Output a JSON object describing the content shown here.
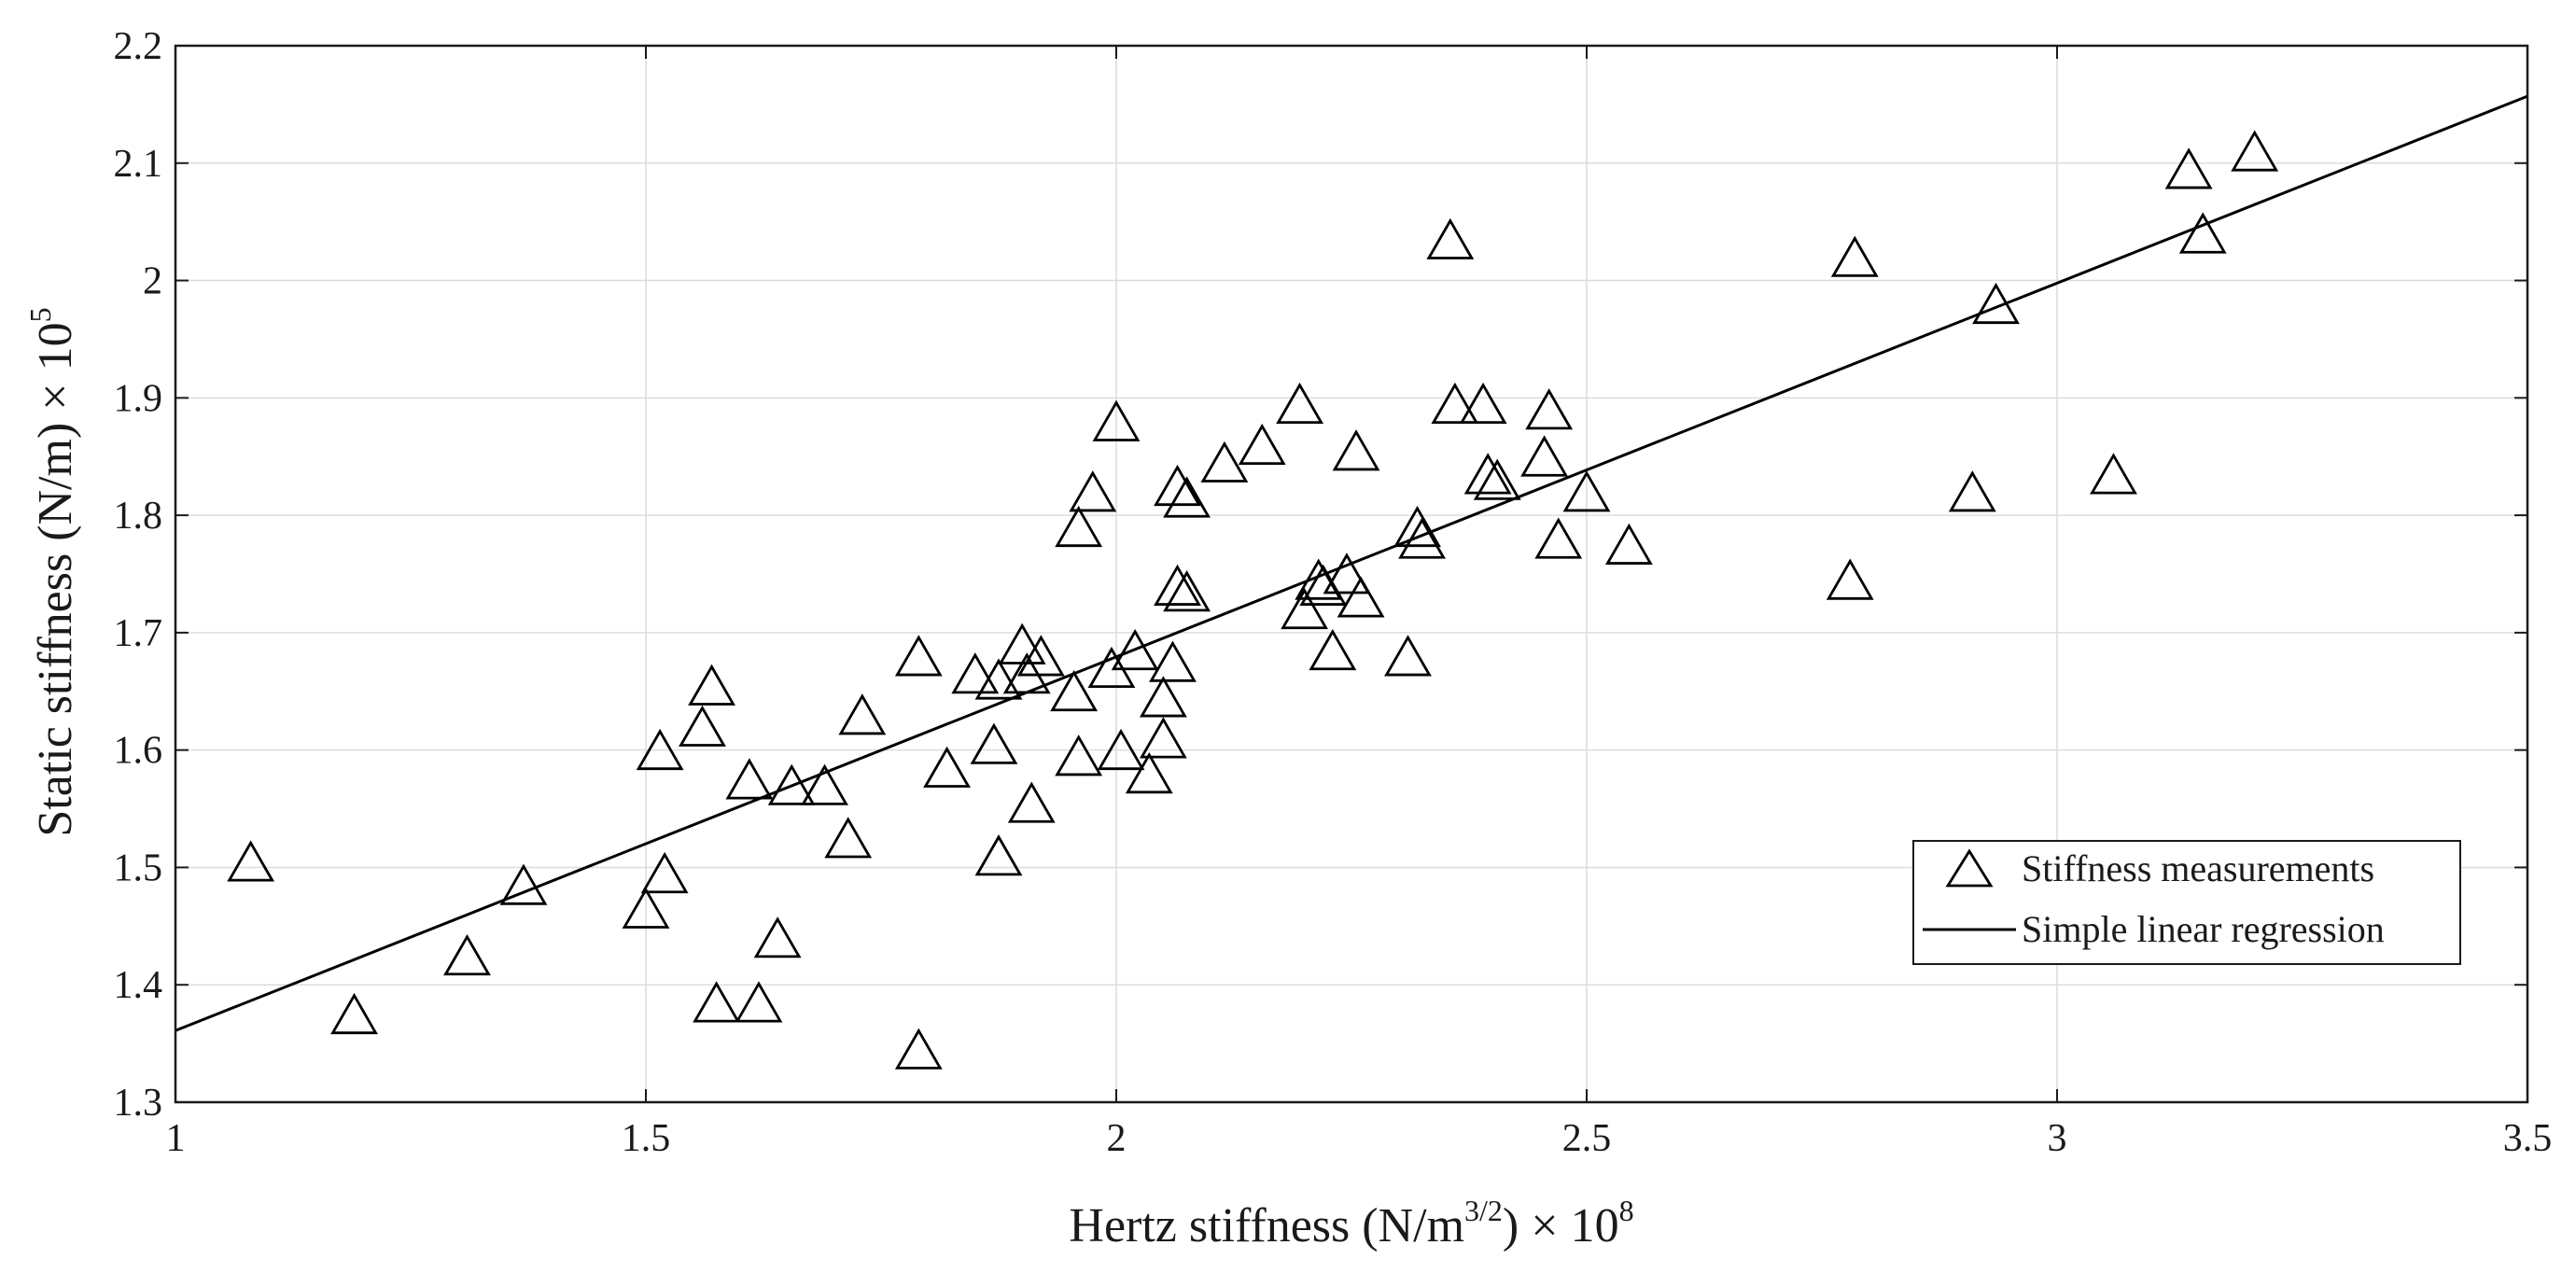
{
  "chart_data": {
    "type": "scatter",
    "title": "",
    "xlabel": {
      "main": "Hertz stiffness (N/m",
      "sup1": "3/2",
      "mid": ") × 10",
      "sup2": "8"
    },
    "ylabel": {
      "main": "Static stiffness (N/m) × 10",
      "sup": "5"
    },
    "xlim": [
      1,
      3.5
    ],
    "ylim": [
      1.3,
      2.2
    ],
    "xticks": [
      "1",
      "1.5",
      "2",
      "2.5",
      "3",
      "3.5"
    ],
    "yticks": [
      "1.3",
      "1.4",
      "1.5",
      "1.6",
      "1.7",
      "1.8",
      "1.9",
      "2",
      "2.1",
      "2.2"
    ],
    "grid": true,
    "legend_position": "lower-right",
    "colors": {
      "marker": "#000000",
      "line": "#000000",
      "grid": "#dcdcdc",
      "axes": "#1a1a1a"
    },
    "series": [
      {
        "name": "Stiffness measurements",
        "marker": "triangle",
        "x": [
          1.08,
          1.19,
          1.31,
          1.37,
          1.5,
          1.52,
          1.515,
          1.57,
          1.56,
          1.575,
          1.62,
          1.64,
          1.61,
          1.655,
          1.69,
          1.715,
          1.73,
          1.79,
          1.79,
          1.82,
          1.85,
          1.87,
          1.875,
          1.875,
          1.9,
          1.905,
          1.91,
          1.92,
          1.955,
          1.96,
          1.96,
          1.975,
          1.995,
          2.0,
          2.005,
          2.02,
          2.035,
          2.05,
          2.05,
          2.06,
          2.065,
          2.065,
          2.075,
          2.075,
          2.115,
          2.155,
          2.195,
          2.2,
          2.215,
          2.22,
          2.23,
          2.245,
          2.255,
          2.26,
          2.31,
          2.32,
          2.325,
          2.355,
          2.36,
          2.39,
          2.395,
          2.405,
          2.455,
          2.46,
          2.47,
          2.5,
          2.545,
          2.78,
          2.785,
          2.91,
          2.935,
          3.06,
          3.14,
          3.155,
          3.21
        ],
        "y": [
          1.505,
          1.375,
          1.425,
          1.485,
          1.465,
          1.495,
          1.6,
          1.655,
          1.62,
          1.385,
          1.385,
          1.44,
          1.575,
          1.57,
          1.57,
          1.525,
          1.63,
          1.68,
          1.345,
          1.585,
          1.665,
          1.605,
          1.51,
          1.66,
          1.69,
          1.665,
          1.555,
          1.68,
          1.65,
          1.79,
          1.595,
          1.82,
          1.67,
          1.88,
          1.6,
          1.685,
          1.58,
          1.61,
          1.645,
          1.675,
          1.825,
          1.74,
          1.815,
          1.735,
          1.845,
          1.86,
          1.895,
          1.72,
          1.745,
          1.74,
          1.685,
          1.75,
          1.855,
          1.73,
          1.68,
          1.79,
          1.78,
          2.035,
          1.895,
          1.895,
          1.835,
          1.83,
          1.85,
          1.89,
          1.78,
          1.82,
          1.775,
          1.745,
          2.02,
          1.82,
          1.98,
          1.835,
          2.095,
          2.04,
          2.11
        ]
      },
      {
        "name": "Simple linear regression",
        "marker": "line",
        "x": [
          1,
          3.5
        ],
        "y": [
          1.361,
          2.157
        ]
      }
    ]
  }
}
